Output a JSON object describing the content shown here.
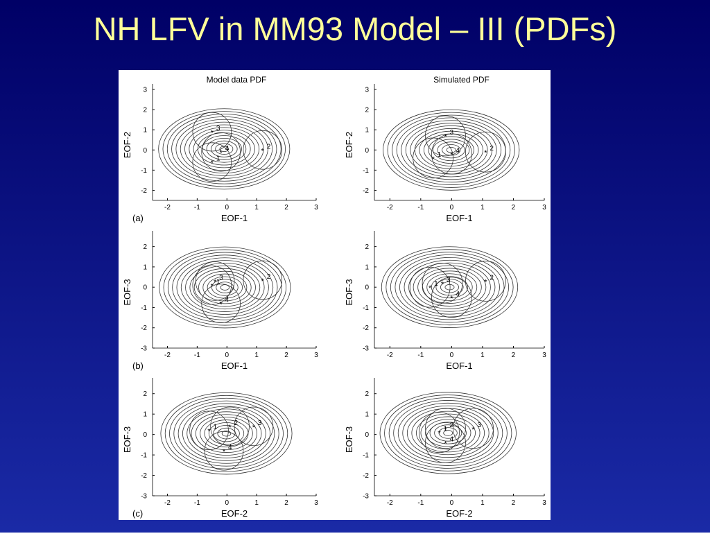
{
  "title": "NH LFV in MM93 Model – III (PDFs)",
  "figure": {
    "panels": [
      {
        "title": "Model data PDF",
        "label": "(a)",
        "xlabel": "EOF-1",
        "ylabel": "EOF-2",
        "xlim": [
          -2.5,
          3
        ],
        "ylim": [
          -2.5,
          3
        ],
        "xticks": [
          -2,
          -1,
          0,
          1,
          2,
          3
        ],
        "yticks": [
          -2,
          -1,
          0,
          1,
          2,
          3
        ],
        "clusters": [
          {
            "name": "1",
            "x": -0.5,
            "y": -0.6
          },
          {
            "name": "2",
            "x": 1.2,
            "y": 0
          },
          {
            "name": "3",
            "x": -0.5,
            "y": 0.9
          },
          {
            "name": "4",
            "x": -0.2,
            "y": -0.1
          }
        ]
      },
      {
        "title": "Simulated PDF",
        "xlabel": "EOF-1",
        "ylabel": "EOF-2",
        "xlim": [
          -2.5,
          3
        ],
        "ylim": [
          -2.5,
          3
        ],
        "xticks": [
          -2,
          -1,
          0,
          1,
          2,
          3
        ],
        "yticks": [
          -2,
          -1,
          0,
          1,
          2,
          3
        ],
        "clusters": [
          {
            "name": "1",
            "x": -0.6,
            "y": -0.4
          },
          {
            "name": "2",
            "x": 1.1,
            "y": -0.1
          },
          {
            "name": "3",
            "x": -0.2,
            "y": 0.7
          },
          {
            "name": "4",
            "x": 0,
            "y": -0.2
          }
        ]
      },
      {
        "label": "(b)",
        "xlabel": "EOF-1",
        "ylabel": "EOF-3",
        "xlim": [
          -2.5,
          3
        ],
        "ylim": [
          -3,
          2.5
        ],
        "xticks": [
          -2,
          -1,
          0,
          1,
          2,
          3
        ],
        "yticks": [
          -3,
          -2,
          -1,
          0,
          1,
          2
        ],
        "clusters": [
          {
            "name": "1",
            "x": -0.5,
            "y": 0.1
          },
          {
            "name": "2",
            "x": 1.2,
            "y": 0.35
          },
          {
            "name": "3",
            "x": -0.4,
            "y": 0.3
          },
          {
            "name": "4",
            "x": -0.2,
            "y": -0.8
          }
        ]
      },
      {
        "xlabel": "EOF-1",
        "ylabel": "EOF-3",
        "xlim": [
          -2.5,
          3
        ],
        "ylim": [
          -3,
          2.5
        ],
        "xticks": [
          -2,
          -1,
          0,
          1,
          2,
          3
        ],
        "yticks": [
          -3,
          -2,
          -1,
          0,
          1,
          2
        ],
        "clusters": [
          {
            "name": "1",
            "x": -0.7,
            "y": 0
          },
          {
            "name": "2",
            "x": 1.1,
            "y": 0.3
          },
          {
            "name": "3",
            "x": -0.3,
            "y": 0.2
          },
          {
            "name": "4",
            "x": 0,
            "y": -0.5
          }
        ]
      },
      {
        "label": "(c)",
        "xlabel": "EOF-2",
        "ylabel": "EOF-3",
        "xlim": [
          -2.5,
          3
        ],
        "ylim": [
          -3,
          2.5
        ],
        "xticks": [
          -2,
          -1,
          0,
          1,
          2,
          3
        ],
        "yticks": [
          -3,
          -2,
          -1,
          0,
          1,
          2
        ],
        "clusters": [
          {
            "name": "1",
            "x": -0.6,
            "y": 0.2
          },
          {
            "name": "2",
            "x": 0.1,
            "y": 0.4
          },
          {
            "name": "3",
            "x": 0.9,
            "y": 0.4
          },
          {
            "name": "4",
            "x": -0.1,
            "y": -0.8
          }
        ]
      },
      {
        "xlabel": "EOF-2",
        "ylabel": "EOF-3",
        "xlim": [
          -2.5,
          3
        ],
        "ylim": [
          -3,
          2.5
        ],
        "xticks": [
          -2,
          -1,
          0,
          1,
          2,
          3
        ],
        "yticks": [
          -3,
          -2,
          -1,
          0,
          1,
          2
        ],
        "clusters": [
          {
            "name": "1",
            "x": -0.4,
            "y": 0.1
          },
          {
            "name": "2",
            "x": -0.2,
            "y": 0.3
          },
          {
            "name": "3",
            "x": 0.7,
            "y": 0.3
          },
          {
            "name": "4",
            "x": -0.2,
            "y": -0.4
          }
        ]
      }
    ]
  }
}
